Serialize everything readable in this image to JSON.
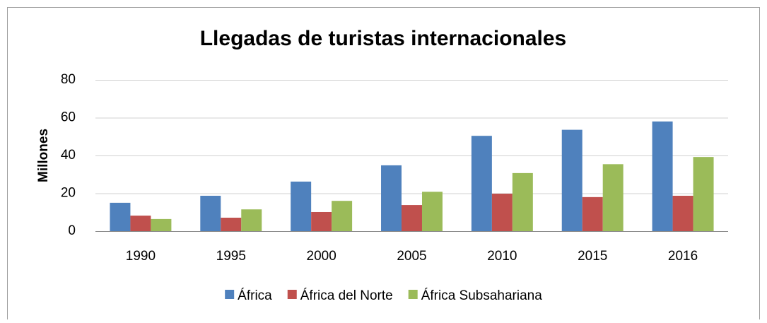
{
  "chart_data": {
    "type": "bar",
    "title": "Llegadas de turistas internacionales",
    "y_label": "Millones",
    "categories": [
      "1990",
      "1995",
      "2000",
      "2005",
      "2010",
      "2015",
      "2016"
    ],
    "series": [
      {
        "name": "África",
        "color": "#4f81bd",
        "values": [
          15,
          18.7,
          26.2,
          34.8,
          50.4,
          53.6,
          58
        ]
      },
      {
        "name": "África del Norte",
        "color": "#c0504d",
        "values": [
          8.2,
          7.1,
          10.1,
          13.8,
          19.8,
          18,
          18.7
        ]
      },
      {
        "name": "África Subsahariana",
        "color": "#9bbb59",
        "values": [
          6.4,
          11.5,
          16,
          20.8,
          30.7,
          35.4,
          39.2
        ]
      }
    ],
    "ylim": [
      0,
      80
    ],
    "yticks": [
      0,
      20,
      40,
      60,
      80
    ],
    "grid": true,
    "legend": "bottom"
  }
}
